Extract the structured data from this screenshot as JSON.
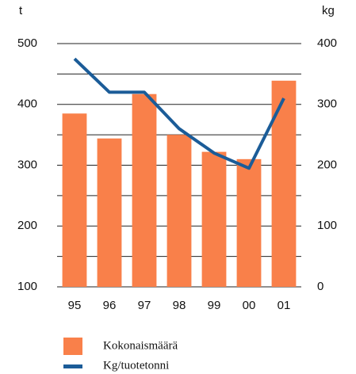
{
  "chart_data": {
    "type": "bar_line",
    "y_label": "t",
    "y2_label": "kg",
    "categories": [
      "95",
      "96",
      "97",
      "98",
      "99",
      "00",
      "01"
    ],
    "series": [
      {
        "name": "Kokonaismäärä",
        "color": "#f9804a",
        "kind": "bar",
        "values": [
          385,
          344,
          417,
          350,
          322,
          310,
          439
        ]
      },
      {
        "name": "Kg/tuotetonni",
        "color": "#1b5c98",
        "kind": "line",
        "axis": "y2",
        "values": [
          375,
          320,
          320,
          260,
          220,
          195,
          310
        ]
      }
    ],
    "ylim": [
      100,
      500
    ],
    "yticks": [
      100,
      200,
      300,
      400,
      500
    ],
    "minor_yticks": [
      150,
      250,
      350,
      450
    ],
    "y2lim": [
      0,
      400
    ],
    "y2ticks": [
      0,
      100,
      200,
      300,
      400
    ],
    "grid": true
  }
}
